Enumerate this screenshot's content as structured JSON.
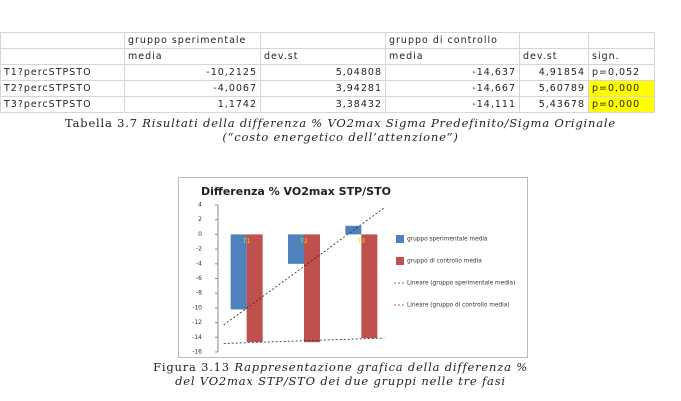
{
  "table": {
    "group_headers": [
      "gruppo sperimentale",
      "gruppo di controllo"
    ],
    "columns": [
      "media",
      "dev.st",
      "media",
      "dev.st",
      "sign."
    ],
    "rows": [
      [
        "T1?percSTPSTO",
        "-10,2125",
        "5,04808",
        "-14,637",
        "4,91854",
        "p=0,052"
      ],
      [
        "T2?percSTPSTO",
        "-4,0067",
        "3,94281",
        "-14,667",
        "5,60789",
        "p=0,000"
      ],
      [
        "T3?percSTPSTO",
        "1,1742",
        "3,38432",
        "-14,111",
        "5,43678",
        "p=0,000"
      ]
    ]
  },
  "table_caption": {
    "label": "Tabella 3.7",
    "text": "Risultati della differenza % VO2max Sigma Predefinito/Sigma Originale",
    "line2": "(“costo energetico dell’attenzione”)"
  },
  "chart_data": {
    "type": "bar",
    "title": "Differenza % VO2max STP/STO",
    "categories": [
      "T1",
      "T2",
      "T3"
    ],
    "series": [
      {
        "name": "gruppo sperimentale media",
        "color": "#4f81bd",
        "values": [
          -10.2125,
          -4.0067,
          1.1742
        ]
      },
      {
        "name": "gruppo di controllo media",
        "color": "#c0504d",
        "values": [
          -14.637,
          -14.667,
          -14.111
        ]
      }
    ],
    "trendlines": [
      {
        "name": "Lineare (gruppo sperimentale media)",
        "color": "#4f81bd"
      },
      {
        "name": "Lineare (gruppo di controllo media)",
        "color": "#c0504d"
      }
    ],
    "ylim": [
      -16,
      4
    ],
    "yticks": [
      4,
      2,
      0,
      -2,
      -4,
      -6,
      -8,
      -10,
      -12,
      -14,
      -16
    ]
  },
  "figure_caption": {
    "label": "Figura 3.13",
    "text": "Rappresentazione grafica della differenza %",
    "line2": "del VO2max STP/STO dei due gruppi nelle tre fasi"
  }
}
